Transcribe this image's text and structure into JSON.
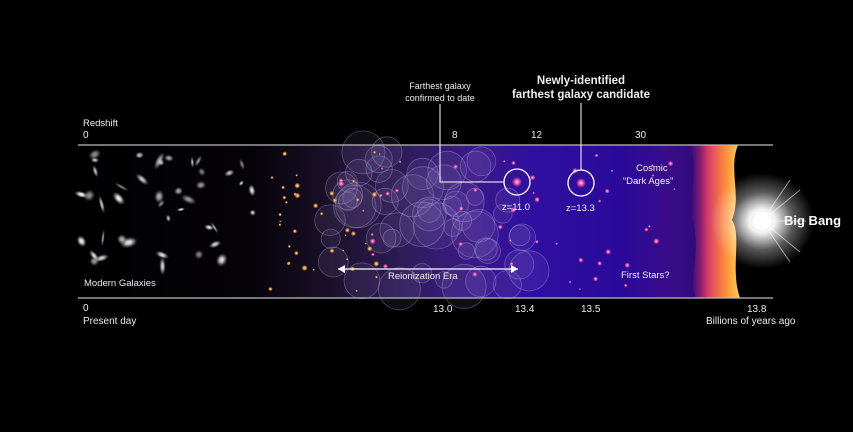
{
  "redshift_title": "Redshift",
  "redshift_ticks": [
    "0",
    "8",
    "12",
    "30"
  ],
  "time_ticks": [
    "0",
    "13.0",
    "13.4",
    "13.5",
    "13.8"
  ],
  "time_start_label": "Present day",
  "time_end_label": "Billions of years ago",
  "regions": {
    "modern_galaxies": "Modern Galaxies",
    "reionization_era": "Reionization Era",
    "first_stars": "First Stars?",
    "cosmic_dark_ages_line1": "Cosmic",
    "cosmic_dark_ages_line2": "“Dark Ages”",
    "big_bang": "Big Bang"
  },
  "callouts": {
    "farthest_confirmed_line1": "Farthest galaxy",
    "farthest_confirmed_line2": "confirmed to date",
    "farthest_candidate_line1": "Newly-identified",
    "farthest_candidate_line2": "farthest galaxy candidate"
  },
  "galaxies": {
    "confirmed_z": "z=11.0",
    "candidate_z": "z=13.3"
  },
  "colors": {
    "background": "#000000",
    "deep_purple": "#2a0a9a",
    "bigbang_glow": "#ffd24a",
    "line": "#bdbdbd"
  }
}
